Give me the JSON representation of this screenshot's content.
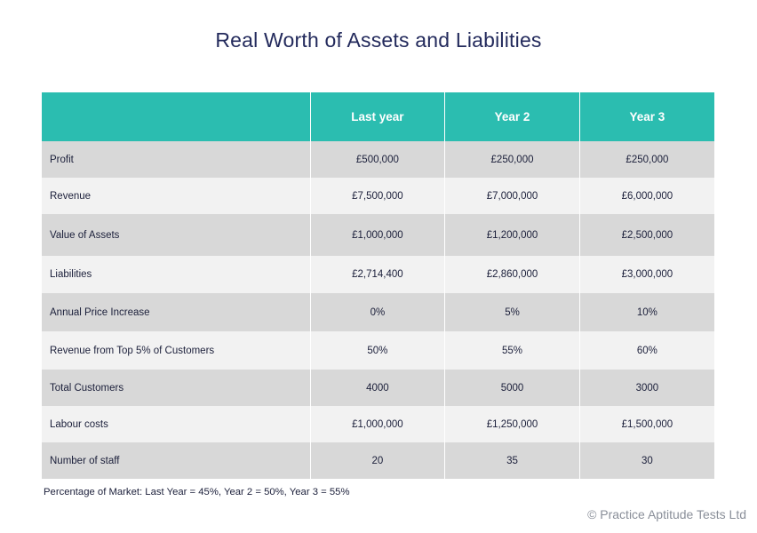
{
  "title": "Real Worth of Assets and Liabilities",
  "table": {
    "headers": [
      "",
      "Last year",
      "Year 2",
      "Year 3"
    ],
    "rows": [
      {
        "label": "Profit",
        "values": [
          "£500,000",
          "£250,000",
          "£250,000"
        ]
      },
      {
        "label": "Revenue",
        "values": [
          "£7,500,000",
          "£7,000,000",
          "£6,000,000"
        ]
      },
      {
        "label": "Value of Assets",
        "values": [
          "£1,000,000",
          "£1,200,000",
          "£2,500,000"
        ]
      },
      {
        "label": "Liabilities",
        "values": [
          "£2,714,400",
          "£2,860,000",
          "£3,000,000"
        ]
      },
      {
        "label": "Annual Price Increase",
        "values": [
          "0%",
          "5%",
          "10%"
        ]
      },
      {
        "label": "Revenue from Top 5% of Customers",
        "values": [
          "50%",
          "55%",
          "60%"
        ]
      },
      {
        "label": "Total Customers",
        "values": [
          "4000",
          "5000",
          "3000"
        ]
      },
      {
        "label": "Labour costs",
        "values": [
          "£1,000,000",
          "£1,250,000",
          "£1,500,000"
        ]
      },
      {
        "label": "Number of staff",
        "values": [
          "20",
          "35",
          "30"
        ]
      }
    ]
  },
  "footnote": "Percentage of Market: Last Year = 45%, Year 2 = 50%, Year 3 = 55%",
  "copyright": "© Practice Aptitude Tests Ltd",
  "colors": {
    "header": "#2bbdb0",
    "row_dark": "#d8d8d8",
    "row_light": "#f2f2f2",
    "title": "#232a5c"
  }
}
